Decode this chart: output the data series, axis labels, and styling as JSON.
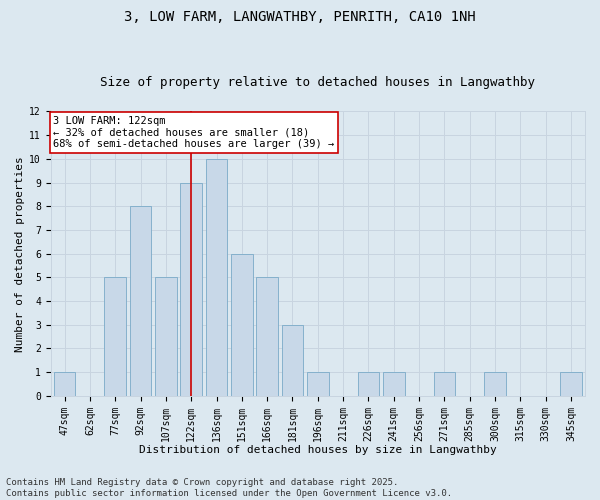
{
  "title1": "3, LOW FARM, LANGWATHBY, PENRITH, CA10 1NH",
  "title2": "Size of property relative to detached houses in Langwathby",
  "xlabel": "Distribution of detached houses by size in Langwathby",
  "ylabel": "Number of detached properties",
  "categories": [
    "47sqm",
    "62sqm",
    "77sqm",
    "92sqm",
    "107sqm",
    "122sqm",
    "136sqm",
    "151sqm",
    "166sqm",
    "181sqm",
    "196sqm",
    "211sqm",
    "226sqm",
    "241sqm",
    "256sqm",
    "271sqm",
    "285sqm",
    "300sqm",
    "315sqm",
    "330sqm",
    "345sqm"
  ],
  "values": [
    1,
    0,
    5,
    8,
    5,
    9,
    10,
    6,
    5,
    3,
    1,
    0,
    1,
    1,
    0,
    1,
    0,
    1,
    0,
    0,
    1
  ],
  "bar_color": "#c8d8e8",
  "bar_edge_color": "#7aaac8",
  "highlight_index": 5,
  "highlight_line_color": "#cc0000",
  "annotation_text": "3 LOW FARM: 122sqm\n← 32% of detached houses are smaller (18)\n68% of semi-detached houses are larger (39) →",
  "annotation_box_facecolor": "#ffffff",
  "annotation_box_edgecolor": "#cc0000",
  "ylim": [
    0,
    12
  ],
  "yticks": [
    0,
    1,
    2,
    3,
    4,
    5,
    6,
    7,
    8,
    9,
    10,
    11,
    12
  ],
  "grid_color": "#c8d4e0",
  "plot_bg_color": "#dce8f0",
  "fig_bg_color": "#dce8f0",
  "footer": "Contains HM Land Registry data © Crown copyright and database right 2025.\nContains public sector information licensed under the Open Government Licence v3.0.",
  "title_fontsize": 10,
  "subtitle_fontsize": 9,
  "axis_label_fontsize": 8,
  "tick_fontsize": 7,
  "annotation_fontsize": 7.5,
  "footer_fontsize": 6.5
}
